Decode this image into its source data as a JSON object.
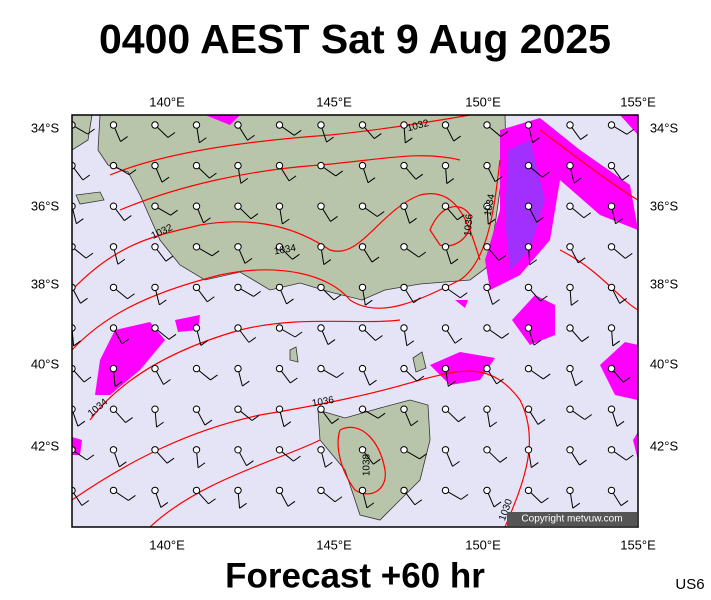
{
  "header": {
    "title": "0400 AEST Sat 9 Aug 2025"
  },
  "map": {
    "lon_labels": [
      "140°E",
      "145°E",
      "150°E",
      "155°E"
    ],
    "lat_labels": [
      "34°S",
      "36°S",
      "38°S",
      "40°S",
      "42°S"
    ],
    "isobar_labels": [
      "1032",
      "1032",
      "1034",
      "1034",
      "1036",
      "1036",
      "1038",
      "1034",
      "1030"
    ],
    "copyright": "Copyright metvuw.com"
  },
  "footer": {
    "forecast": "Forecast +60 hr",
    "code": "US6"
  }
}
